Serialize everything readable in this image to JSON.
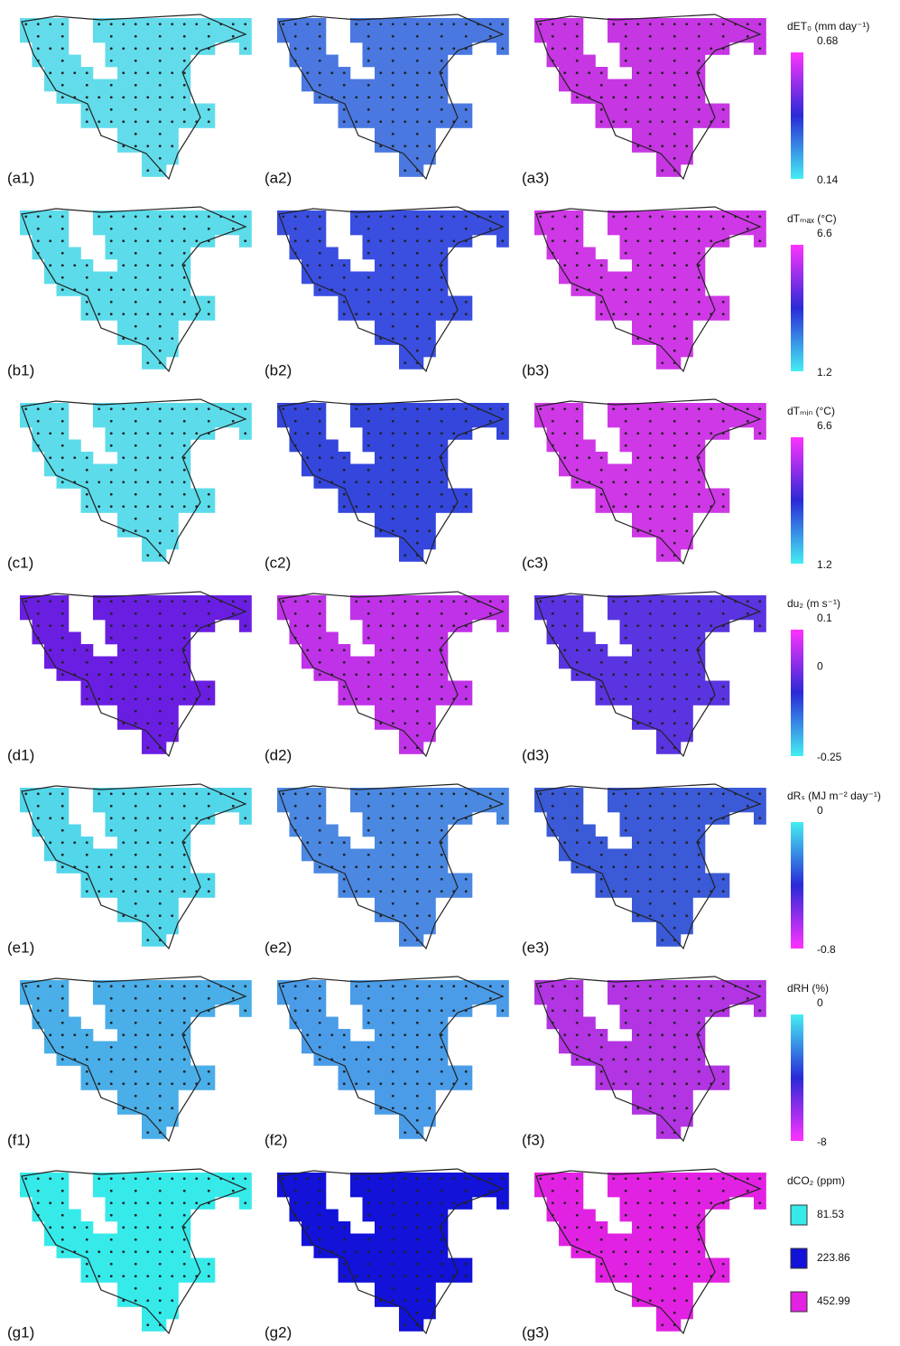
{
  "panels": [
    {
      "labels": [
        "(a1)",
        "(a2)",
        "(a3)"
      ],
      "colors": [
        "#62dcea",
        "#4a78e0",
        "#c636e2"
      ]
    },
    {
      "labels": [
        "(b1)",
        "(b2)",
        "(b3)"
      ],
      "colors": [
        "#5cdcea",
        "#3a4ee0",
        "#cf38e6"
      ]
    },
    {
      "labels": [
        "(c1)",
        "(c2)",
        "(c3)"
      ],
      "colors": [
        "#5cdcea",
        "#3446dc",
        "#cf38e6"
      ]
    },
    {
      "labels": [
        "(d1)",
        "(d2)",
        "(d3)"
      ],
      "colors": [
        "#6a1ee2",
        "#c032e8",
        "#5a34e0"
      ]
    },
    {
      "labels": [
        "(e1)",
        "(e2)",
        "(e3)"
      ],
      "colors": [
        "#52d6ea",
        "#4a88e2",
        "#3a5ad8"
      ]
    },
    {
      "labels": [
        "(f1)",
        "(f2)",
        "(f3)"
      ],
      "colors": [
        "#4aaee8",
        "#4a9ce8",
        "#b234e2"
      ]
    },
    {
      "labels": [
        "(g1)",
        "(g2)",
        "(g3)"
      ],
      "colors": [
        "#36eaea",
        "#1212d8",
        "#e222e2"
      ]
    }
  ],
  "legends": [
    {
      "title": "dET₀ (mm day⁻¹)",
      "ticks": [
        "0.68",
        "0.14"
      ],
      "gradient": [
        "#ff33ff",
        "#2a2ad8",
        "#44eef2"
      ]
    },
    {
      "title": "dTₘₐₓ (°C)",
      "ticks": [
        "6.6",
        "1.2"
      ],
      "gradient": [
        "#ff33ff",
        "#2a2ad8",
        "#44eef2"
      ]
    },
    {
      "title": "dTₘᵢₙ (°C)",
      "ticks": [
        "6.6",
        "1.2"
      ],
      "gradient": [
        "#ff33ff",
        "#2a2ad8",
        "#44eef2"
      ]
    },
    {
      "title": "du₂ (m s⁻¹)",
      "ticks": [
        "0.1",
        "0",
        "-0.25"
      ],
      "gradient": [
        "#ff33ff",
        "#2a2ad8",
        "#44eef2"
      ]
    },
    {
      "title": "dRₛ (MJ m⁻² day⁻¹)",
      "ticks": [
        "0",
        "-0.8"
      ],
      "gradient": [
        "#44eef2",
        "#2a2ad8",
        "#ff33ff"
      ]
    },
    {
      "title": "dRH (%)",
      "ticks": [
        "0",
        "-8"
      ],
      "gradient": [
        "#44eef2",
        "#2a2ad8",
        "#ff33ff"
      ]
    },
    {
      "title": "dCO₂ (ppm)",
      "items": [
        {
          "label": "81.53",
          "color": "#36eaea"
        },
        {
          "label": "223.86",
          "color": "#1212d8"
        },
        {
          "label": "452.99",
          "color": "#e222e2"
        }
      ]
    }
  ]
}
